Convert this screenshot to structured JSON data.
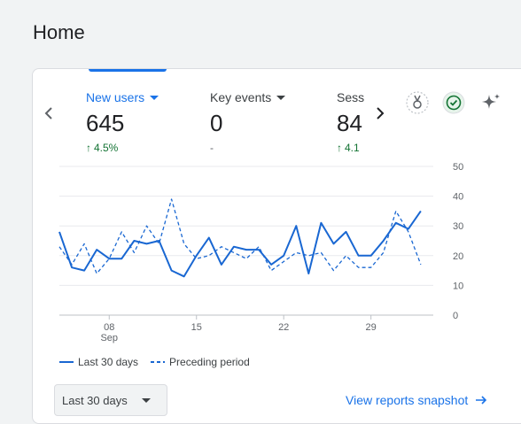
{
  "page": {
    "title": "Home"
  },
  "metrics": [
    {
      "label": "New users",
      "value": "645",
      "change": "4.5%",
      "active": true
    },
    {
      "label": "Key events",
      "value": "0",
      "change": "-"
    },
    {
      "label": "Sess",
      "value": "84",
      "change": "4.1"
    }
  ],
  "icons": {
    "prev": "chevron-left-icon",
    "next": "chevron-right-icon",
    "insights": "insights-medal-icon",
    "status": "check-circle-icon",
    "ai": "sparkle-icon"
  },
  "colors": {
    "accent": "#1a73e8",
    "positive": "#137333",
    "series": "#1967d2"
  },
  "chart_data": {
    "type": "line",
    "x_tick_labels": [
      {
        "day": 8,
        "label": "08",
        "sub": "Sep"
      },
      {
        "day": 15,
        "label": "15",
        "sub": ""
      },
      {
        "day": 22,
        "label": "22",
        "sub": ""
      },
      {
        "day": 29,
        "label": "29",
        "sub": ""
      }
    ],
    "y_ticks": [
      0,
      10,
      20,
      30,
      40,
      50
    ],
    "ylim": [
      0,
      50
    ],
    "grid": true,
    "legend_position": "bottom-left",
    "series": [
      {
        "name": "Last 30 days",
        "style": "solid",
        "days": [
          4,
          5,
          6,
          7,
          8,
          9,
          10,
          11,
          12,
          13,
          14,
          15,
          16,
          17,
          18,
          19,
          20,
          21,
          22,
          23,
          24,
          25,
          26,
          27,
          28,
          29,
          30,
          31,
          32,
          33,
          34
        ],
        "values": [
          28,
          16,
          15,
          22,
          19,
          19,
          25,
          24,
          25,
          15,
          13,
          20,
          26,
          17,
          23,
          22,
          22,
          17,
          20,
          30,
          14,
          31,
          24,
          28,
          20,
          20,
          25,
          31,
          29,
          35,
          null
        ]
      },
      {
        "name": "Preceding period",
        "style": "dashed",
        "days": [
          4,
          5,
          6,
          7,
          8,
          9,
          10,
          11,
          12,
          13,
          14,
          15,
          16,
          17,
          18,
          19,
          20,
          21,
          22,
          23,
          24,
          25,
          26,
          27,
          28,
          29,
          30,
          31,
          32,
          33,
          34
        ],
        "values": [
          23,
          17,
          24,
          14,
          19,
          28,
          21,
          30,
          24,
          39,
          24,
          19,
          20,
          23,
          21,
          19,
          23,
          15,
          18,
          21,
          20,
          21,
          15,
          20,
          16,
          16,
          21,
          35,
          28,
          17,
          null
        ]
      }
    ]
  },
  "footer": {
    "date_range": "Last 30 days",
    "link": "View reports snapshot"
  }
}
